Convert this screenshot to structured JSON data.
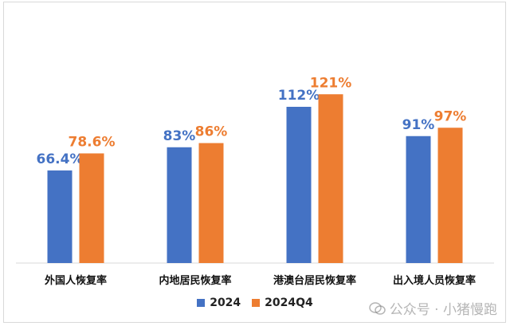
{
  "chart_data": {
    "type": "bar",
    "categories": [
      "外国人恢复率",
      "内地居民恢复率",
      "港澳台居民恢复率",
      "出入境人员恢复率"
    ],
    "series": [
      {
        "name": "2024",
        "values": [
          66.4,
          83,
          112,
          91
        ],
        "labels": [
          "66.4%",
          "83%",
          "112%",
          "91%"
        ],
        "color": "#4472C4"
      },
      {
        "name": "2024Q4",
        "values": [
          78.6,
          86,
          121,
          97
        ],
        "labels": [
          "78.6%",
          "86%",
          "121%",
          "97%"
        ],
        "color": "#ED7D31"
      }
    ],
    "ylim": [
      0,
      140
    ],
    "grid": false,
    "legend_position": "bottom"
  },
  "watermark": {
    "text": "公众号 · 小猪慢跑",
    "icon": "wechat-icon"
  },
  "colors": {
    "baseline": "#d9d9d9",
    "category_text": "#111111"
  }
}
